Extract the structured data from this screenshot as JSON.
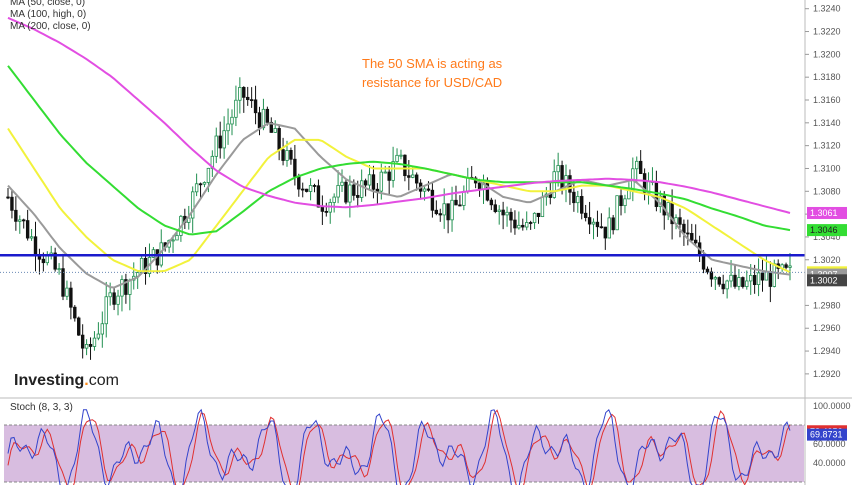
{
  "legend": {
    "ma50": "MA (50, close, 0)",
    "ma100": "MA (100, high, 0)",
    "ma200": "MA (200, close, 0)"
  },
  "annotation": {
    "line1": "The 50 SMA is acting as",
    "line2": "resistance for USD/CAD"
  },
  "logo": {
    "main": "Investing",
    "dot": ".",
    "suffix": "com"
  },
  "stoch": {
    "label": "Stoch (8, 3, 3)",
    "ticks": [
      "100.0000",
      "60.0000",
      "40.0000"
    ],
    "badges": [
      {
        "value": "73.4056",
        "color": "#e03030",
        "y": 73.4056
      },
      {
        "value": "69.8731",
        "color": "#3344cc",
        "y": 69.8731
      }
    ],
    "upper": 80,
    "lower": 20
  },
  "colors": {
    "ma50": "#9a9a9a",
    "ma100": "#f2f23c",
    "ma200": "#33dd33",
    "ma_extra": "#e24ee2",
    "resistance": "#1a1acc",
    "bull": "#1f8f4f",
    "bear": "#111111",
    "stoch_k": "#3344cc",
    "stoch_d": "#e03030",
    "stoch_band": "#d8bde0"
  },
  "chart_data": {
    "type": "line",
    "title": "The 50 SMA is acting as resistance for USD/CAD",
    "ylim": [
      1.2905,
      1.3245
    ],
    "y_ticks": [
      "1.3240",
      "1.3220",
      "1.3200",
      "1.3180",
      "1.3160",
      "1.3140",
      "1.3120",
      "1.3100",
      "1.3080",
      "1.3060",
      "1.3040",
      "1.3020",
      "1.2980",
      "1.2960",
      "1.2940",
      "1.2920"
    ],
    "resistance_level": 1.3024,
    "current_price": 1.3009,
    "series": [
      {
        "name": "MA (50, close, 0)",
        "values": [
          1.3085,
          1.306,
          1.303,
          1.3008,
          1.2995,
          1.3005,
          1.303,
          1.306,
          1.3095,
          1.3125,
          1.314,
          1.3135,
          1.311,
          1.309,
          1.308,
          1.3075,
          1.3085,
          1.3095,
          1.309,
          1.3075,
          1.307,
          1.308,
          1.309,
          1.3085,
          1.309,
          1.307,
          1.304,
          1.302,
          1.3015,
          1.301,
          1.3007
        ]
      },
      {
        "name": "MA (100, high, 0)",
        "values": [
          1.3135,
          1.31,
          1.3065,
          1.304,
          1.302,
          1.301,
          1.301,
          1.302,
          1.305,
          1.308,
          1.311,
          1.3125,
          1.3125,
          1.311,
          1.31,
          1.31,
          1.31,
          1.3095,
          1.309,
          1.3085,
          1.308,
          1.308,
          1.3085,
          1.3085,
          1.308,
          1.3075,
          1.3065,
          1.305,
          1.3035,
          1.302,
          1.3009
        ]
      },
      {
        "name": "MA (200, close, 0)",
        "values": [
          1.319,
          1.316,
          1.313,
          1.3105,
          1.3085,
          1.3065,
          1.305,
          1.3042,
          1.3045,
          1.3062,
          1.308,
          1.3092,
          1.31,
          1.3104,
          1.3106,
          1.3104,
          1.31,
          1.3095,
          1.309,
          1.3088,
          1.3088,
          1.3088,
          1.3088,
          1.3085,
          1.3082,
          1.3078,
          1.3073,
          1.3065,
          1.3058,
          1.305,
          1.3046
        ]
      },
      {
        "name": "",
        "values": [
          1.3232,
          1.3222,
          1.321,
          1.3196,
          1.318,
          1.316,
          1.314,
          1.3118,
          1.3098,
          1.3084,
          1.3076,
          1.307,
          1.3067,
          1.3066,
          1.3068,
          1.3071,
          1.3074,
          1.3078,
          1.3081,
          1.3084,
          1.3087,
          1.3089,
          1.309,
          1.3091,
          1.309,
          1.3088,
          1.3084,
          1.3079,
          1.3073,
          1.3067,
          1.3061
        ]
      }
    ],
    "price_path": [
      1.3075,
      1.3035,
      1.3005,
      1.2935,
      1.299,
      1.301,
      1.303,
      1.307,
      1.312,
      1.3165,
      1.3135,
      1.3095,
      1.307,
      1.308,
      1.3085,
      1.3105,
      1.308,
      1.306,
      1.3095,
      1.306,
      1.3045,
      1.3095,
      1.307,
      1.3045,
      1.31,
      1.307,
      1.304,
      1.301,
      1.2995,
      1.3005,
      1.3007
    ],
    "price_labels": [
      {
        "value": "1.3061",
        "color": "#e24ee2",
        "price": 1.3061
      },
      {
        "value": "1.3046",
        "color": "#33dd33",
        "price": 1.3046
      },
      {
        "value": "1.3009",
        "color": "#f2f23c",
        "price": 1.3009
      },
      {
        "value": "1.3007",
        "color": "#9a9a9a",
        "price": 1.3007
      },
      {
        "value": "1.3002",
        "color": "#444444",
        "price": 1.3002
      }
    ]
  }
}
